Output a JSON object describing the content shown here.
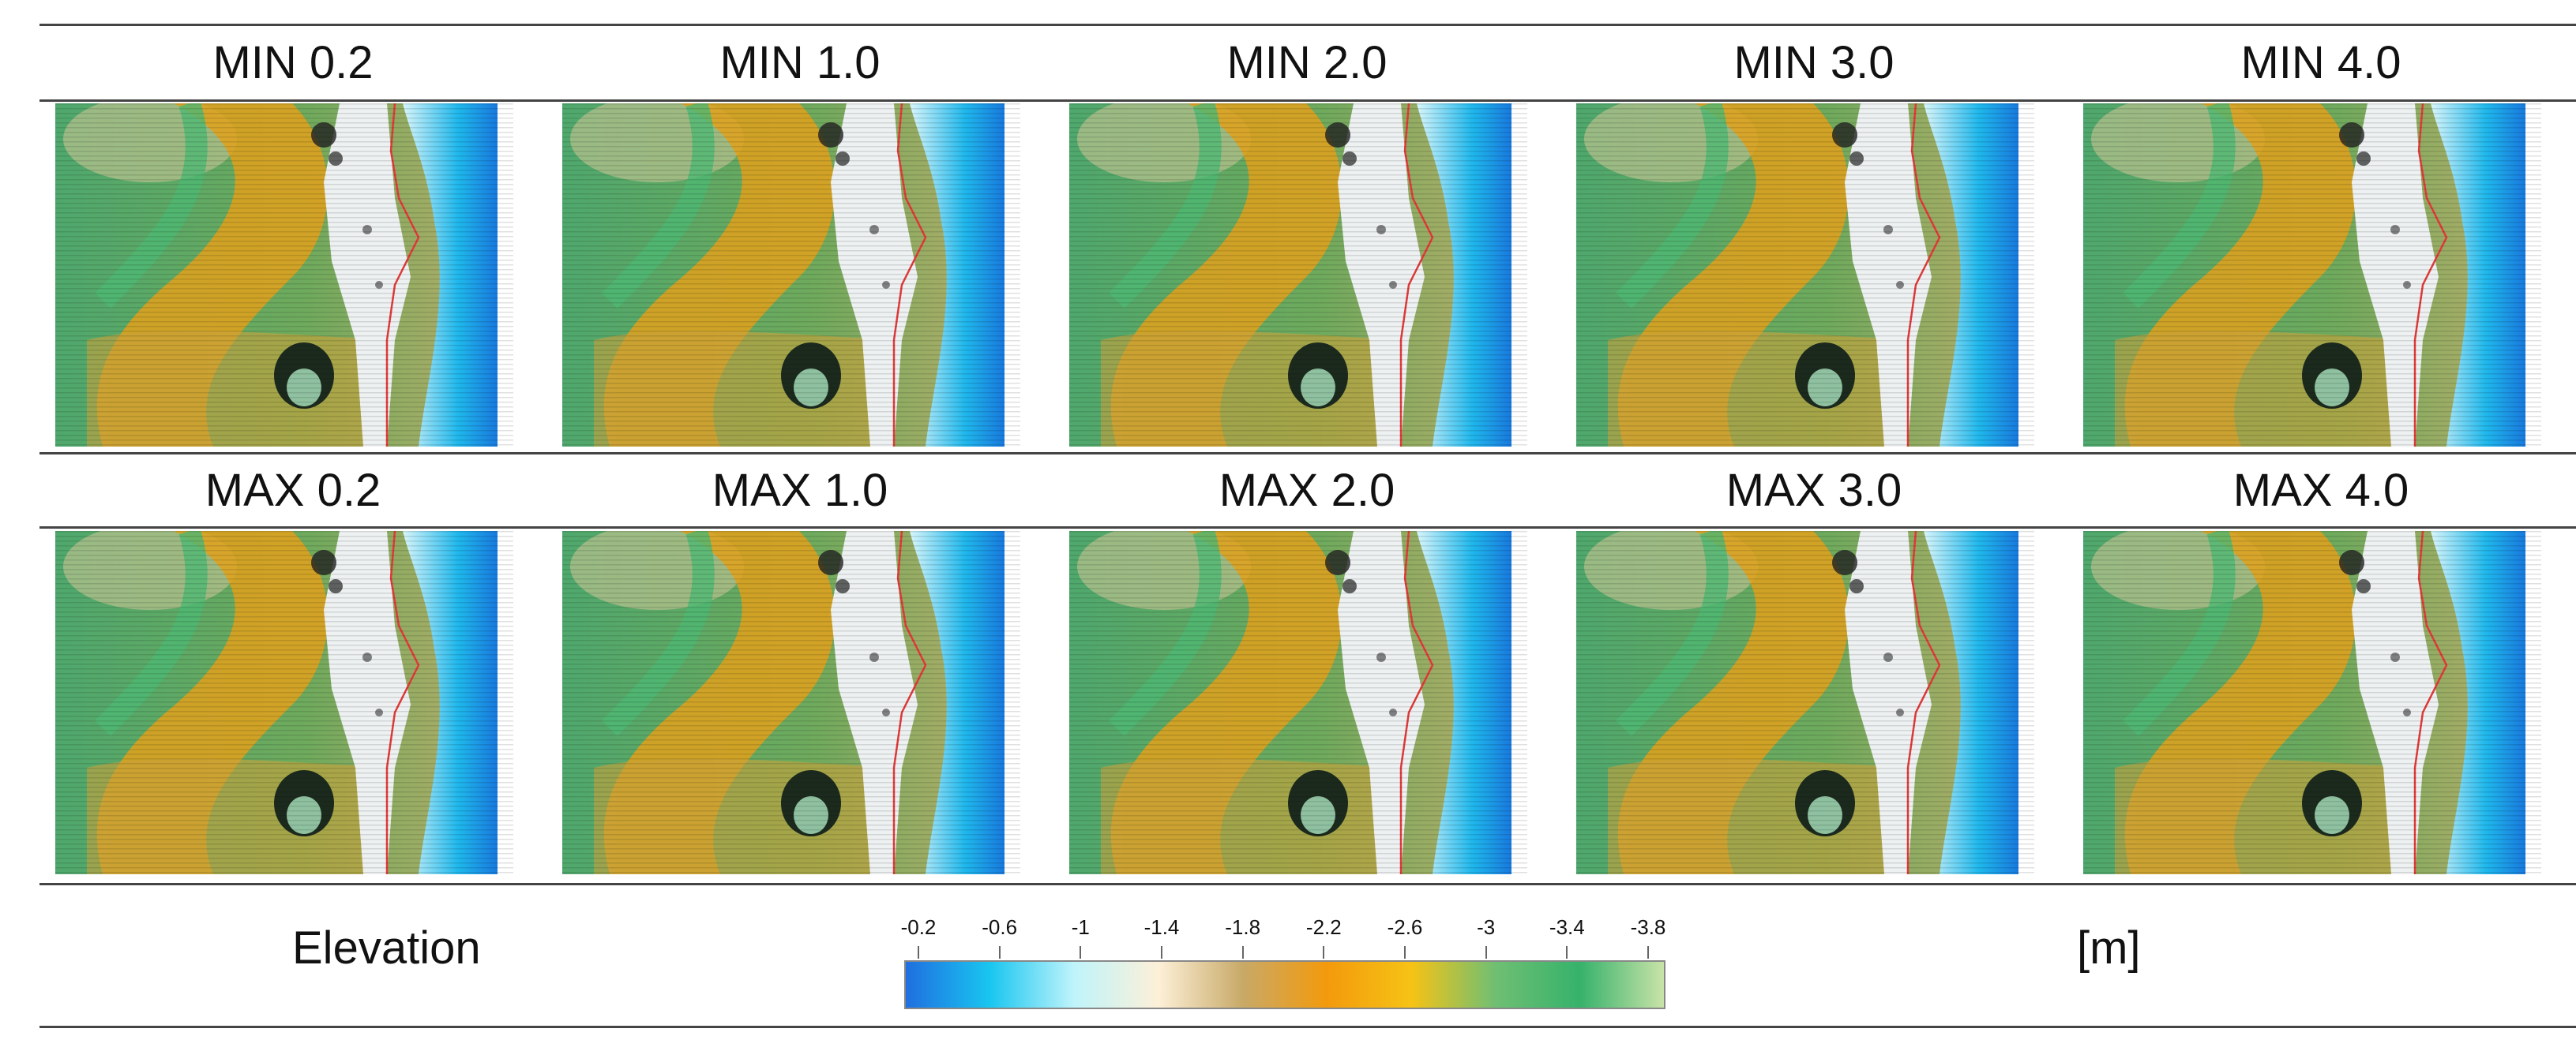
{
  "panels_top": [
    {
      "label": "MIN 0.2"
    },
    {
      "label": "MIN 1.0"
    },
    {
      "label": "MIN 2.0"
    },
    {
      "label": "MIN 3.0"
    },
    {
      "label": "MIN 4.0"
    }
  ],
  "panels_bottom": [
    {
      "label": "MAX 0.2"
    },
    {
      "label": "MAX 1.0"
    },
    {
      "label": "MAX 2.0"
    },
    {
      "label": "MAX 3.0"
    },
    {
      "label": "MAX 4.0"
    }
  ],
  "legend": {
    "title": "Elevation",
    "unit": "[m]",
    "ticks": [
      "-0.2",
      "-0.6",
      "-1",
      "-1.4",
      "-1.8",
      "-2.2",
      "-2.6",
      "-3",
      "-3.4",
      "-3.8"
    ],
    "gradient": [
      "#1f6fe0",
      "#19c6f0",
      "#bff4fb",
      "#fdf0d8",
      "#c8a968",
      "#f39a0c",
      "#f6c315",
      "#6fbf73",
      "#36b26b",
      "#c9e3a8"
    ]
  }
}
